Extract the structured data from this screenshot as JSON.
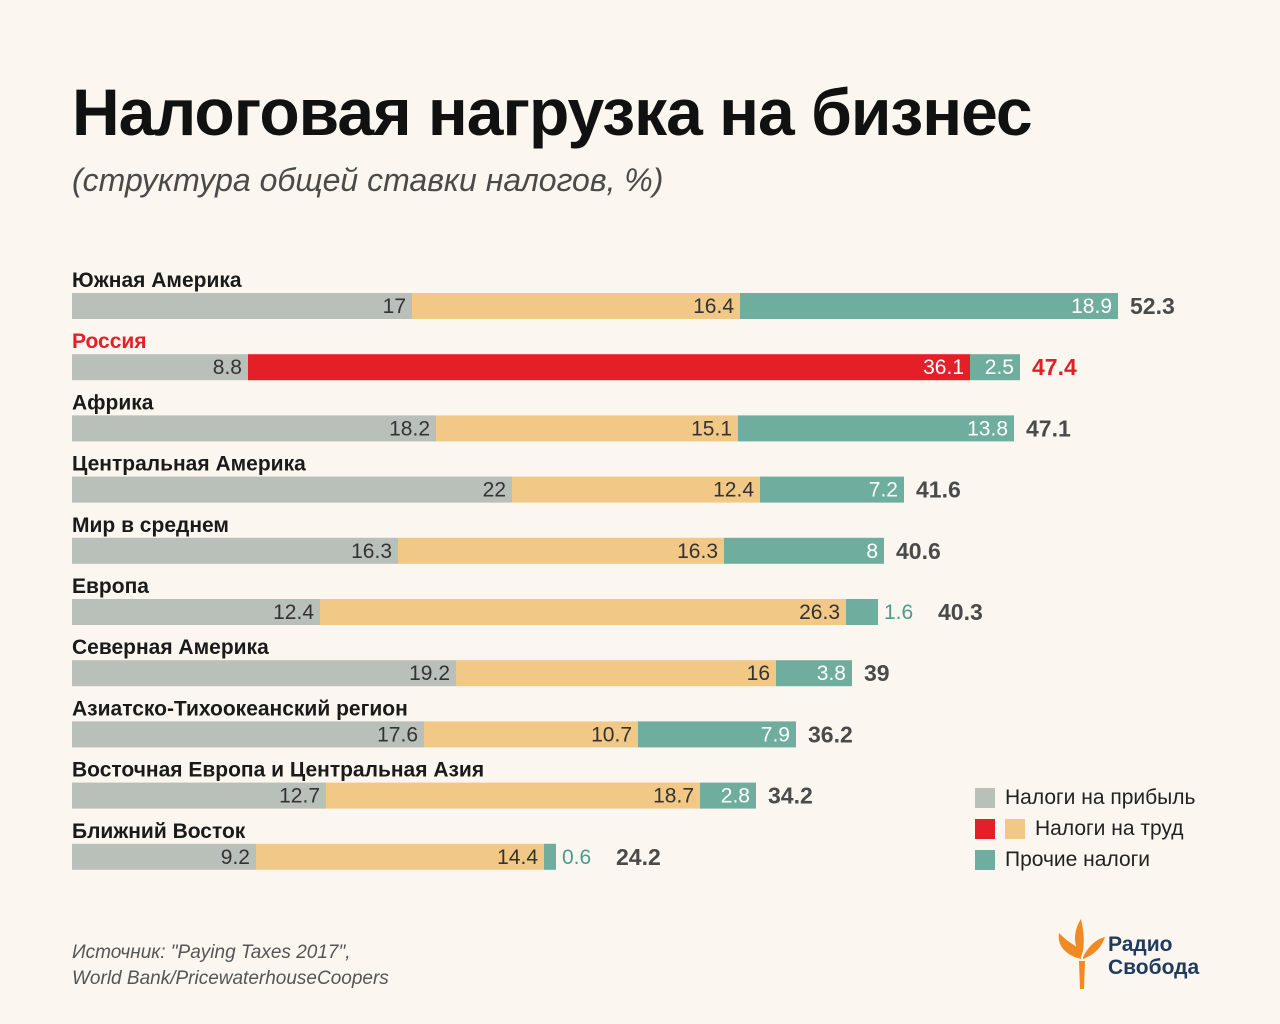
{
  "title": "Налоговая нагрузка на бизнес",
  "subtitle": "(структура общей ставки налогов, %)",
  "colors": {
    "background": "#fbf6ef",
    "profit": "#b9bfb9",
    "labor": "#f2c887",
    "labor_highlight": "#e32028",
    "other": "#6fae9f",
    "other_label_outside": "#4a9c89",
    "highlight_label": "#e32028",
    "total_label": "#4a4a4a"
  },
  "chart_data": {
    "type": "bar",
    "orientation": "horizontal",
    "stacked": true,
    "title": "Налоговая нагрузка на бизнес",
    "subtitle": "(структура общей ставки налогов, %)",
    "categories": [
      "Южная Америка",
      "Россия",
      "Африка",
      "Центральная Америка",
      "Мир в среднем",
      "Европа",
      "Северная Америка",
      "Азиатско-Тихоокеанский регион",
      "Восточная Европа и Центральная Азия",
      "Ближний Восток"
    ],
    "highlight_category": "Россия",
    "series": [
      {
        "name": "Налоги на прибыль",
        "values": [
          17,
          8.8,
          18.2,
          22,
          16.3,
          12.4,
          19.2,
          17.6,
          12.7,
          9.2
        ]
      },
      {
        "name": "Налоги на труд",
        "values": [
          16.4,
          36.1,
          15.1,
          12.4,
          16.3,
          26.3,
          16,
          10.7,
          18.7,
          14.4
        ]
      },
      {
        "name": "Прочие налоги",
        "values": [
          18.9,
          2.5,
          13.8,
          7.2,
          8,
          1.6,
          3.8,
          7.9,
          2.8,
          0.6
        ]
      }
    ],
    "totals": [
      52.3,
      47.4,
      47.1,
      41.6,
      40.6,
      40.3,
      39,
      36.2,
      34.2,
      24.2
    ],
    "grid": false,
    "legend_position": "bottom-right"
  },
  "legend": [
    {
      "label": "Налоги на прибыль",
      "color": "#b9bfb9"
    },
    {
      "label": "Налоги на труд",
      "color": "#f2c887",
      "alt_color": "#e32028"
    },
    {
      "label": "Прочие налоги",
      "color": "#6fae9f"
    }
  ],
  "source": {
    "line1": "Источник: \"Paying Taxes 2017\",",
    "line2": "World Bank/PricewaterhouseCoopers"
  },
  "logo": {
    "line1": "Радио",
    "line2": "Свобода"
  }
}
